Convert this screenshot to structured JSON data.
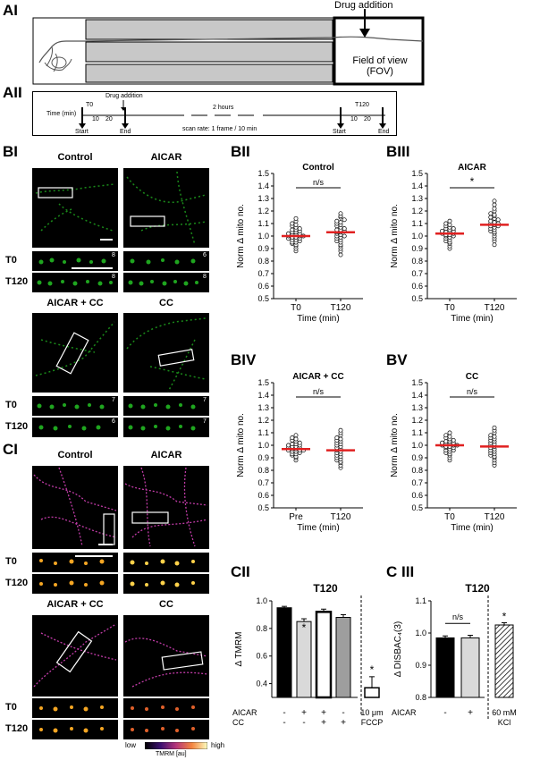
{
  "panelA": {
    "labelAI": "AI",
    "labelAII": "AII",
    "drugAddition": "Drug addition",
    "fovLine1": "Field of view",
    "fovLine2": "(FOV)",
    "timeline": {
      "timeLabel": "Time (min)",
      "t0": "T0",
      "t120": "T120",
      "drug": "Drug addition",
      "twoHours": "2 hours",
      "scanRate": "scan rate: 1 frame / 10 min",
      "start": "Start",
      "end": "End",
      "ticks": [
        "10",
        "20"
      ]
    }
  },
  "panelB": {
    "label": "BI",
    "images": [
      {
        "title": "Control",
        "n0": "8",
        "n120": "8"
      },
      {
        "title": "AICAR",
        "n0": "6",
        "n120": "8"
      },
      {
        "title": "AICAR + CC",
        "n0": "7",
        "n120": "6"
      },
      {
        "title": "CC",
        "n0": "7",
        "n120": "7"
      }
    ],
    "rowT0": "T0",
    "rowT120": "T120"
  },
  "panelC": {
    "label": "CI",
    "images": [
      {
        "title": "Control"
      },
      {
        "title": "AICAR"
      },
      {
        "title": "AICAR + CC"
      },
      {
        "title": "CC"
      }
    ],
    "rowT0": "T0",
    "rowT120": "T120",
    "colorbar": {
      "low": "low",
      "high": "high",
      "unit": "TMRM [au]"
    }
  },
  "chart_data": [
    {
      "id": "BII",
      "type": "scatter",
      "title": "Control",
      "panel": "BII",
      "ylabel": "Norm Δ mito no.",
      "xlabel": "Time (min)",
      "categories": [
        "T0",
        "T120"
      ],
      "ylim": [
        0.5,
        1.5
      ],
      "yticks": [
        "0.5",
        "0.6",
        "0.7",
        "0.8",
        "0.9",
        "1.0",
        "1.1",
        "1.2",
        "1.3",
        "1.4",
        "1.5"
      ],
      "significance": "n/s",
      "means": [
        1.0,
        1.03
      ],
      "series": [
        {
          "values": [
            0.88,
            0.9,
            0.92,
            0.93,
            0.94,
            0.95,
            0.95,
            0.96,
            0.97,
            0.97,
            0.98,
            0.98,
            0.99,
            0.99,
            1.0,
            1.0,
            1.0,
            1.01,
            1.01,
            1.02,
            1.02,
            1.03,
            1.03,
            1.04,
            1.05,
            1.05,
            1.06,
            1.07,
            1.08,
            1.09,
            1.1,
            1.12,
            1.14
          ]
        },
        {
          "values": [
            0.85,
            0.88,
            0.9,
            0.92,
            0.93,
            0.95,
            0.96,
            0.97,
            0.98,
            0.99,
            1.0,
            1.0,
            1.01,
            1.02,
            1.03,
            1.03,
            1.04,
            1.05,
            1.05,
            1.06,
            1.07,
            1.08,
            1.09,
            1.1,
            1.11,
            1.12,
            1.13,
            1.15,
            1.16,
            1.18
          ]
        }
      ]
    },
    {
      "id": "BIII",
      "type": "scatter",
      "title": "AICAR",
      "panel": "BIII",
      "ylabel": "Norm Δ mito no.",
      "xlabel": "Time (min)",
      "categories": [
        "T0",
        "T120"
      ],
      "ylim": [
        0.5,
        1.5
      ],
      "yticks": [
        "0.5",
        "0.6",
        "0.7",
        "0.8",
        "0.9",
        "1.0",
        "1.1",
        "1.2",
        "1.3",
        "1.4",
        "1.5"
      ],
      "significance": "*",
      "means": [
        1.02,
        1.09
      ],
      "series": [
        {
          "values": [
            0.9,
            0.92,
            0.94,
            0.95,
            0.96,
            0.97,
            0.98,
            0.99,
            1.0,
            1.0,
            1.01,
            1.01,
            1.02,
            1.02,
            1.03,
            1.03,
            1.04,
            1.04,
            1.05,
            1.06,
            1.06,
            1.07,
            1.08,
            1.09,
            1.1,
            1.12
          ]
        },
        {
          "values": [
            0.93,
            0.96,
            0.98,
            1.0,
            1.02,
            1.03,
            1.04,
            1.05,
            1.06,
            1.07,
            1.08,
            1.08,
            1.09,
            1.1,
            1.1,
            1.11,
            1.12,
            1.13,
            1.14,
            1.15,
            1.16,
            1.17,
            1.18,
            1.2,
            1.22,
            1.25,
            1.28
          ]
        }
      ]
    },
    {
      "id": "BIV",
      "type": "scatter",
      "title": "AICAR + CC",
      "panel": "BIV",
      "ylabel": "Norm Δ mito no.",
      "xlabel": "Time (min)",
      "categories": [
        "Pre",
        "T120"
      ],
      "ylim": [
        0.5,
        1.5
      ],
      "yticks": [
        "0.5",
        "0.6",
        "0.7",
        "0.8",
        "0.9",
        "1.0",
        "1.1",
        "1.2",
        "1.3",
        "1.4",
        "1.5"
      ],
      "significance": "n/s",
      "means": [
        0.97,
        0.96
      ],
      "series": [
        {
          "values": [
            0.88,
            0.9,
            0.91,
            0.92,
            0.93,
            0.93,
            0.94,
            0.95,
            0.95,
            0.96,
            0.96,
            0.96,
            0.97,
            0.97,
            0.98,
            0.98,
            0.99,
            0.99,
            1.0,
            1.0,
            1.01,
            1.01,
            1.02,
            1.03,
            1.04,
            1.05,
            1.06,
            1.08
          ]
        },
        {
          "values": [
            0.82,
            0.84,
            0.86,
            0.87,
            0.88,
            0.89,
            0.9,
            0.91,
            0.92,
            0.93,
            0.94,
            0.95,
            0.96,
            0.97,
            0.98,
            0.99,
            1.0,
            1.01,
            1.02,
            1.03,
            1.04,
            1.05,
            1.06,
            1.08,
            1.1,
            1.12
          ]
        }
      ]
    },
    {
      "id": "BV",
      "type": "scatter",
      "title": "CC",
      "panel": "BV",
      "ylabel": "Norm Δ mito no.",
      "xlabel": "Time (min)",
      "categories": [
        "T0",
        "T120"
      ],
      "ylim": [
        0.5,
        1.5
      ],
      "yticks": [
        "0.5",
        "0.6",
        "0.7",
        "0.8",
        "0.9",
        "1.0",
        "1.1",
        "1.2",
        "1.3",
        "1.4",
        "1.5"
      ],
      "significance": "n/s",
      "means": [
        1.0,
        0.99
      ],
      "series": [
        {
          "values": [
            0.88,
            0.9,
            0.92,
            0.93,
            0.94,
            0.95,
            0.96,
            0.96,
            0.97,
            0.98,
            0.98,
            0.99,
            0.99,
            1.0,
            1.0,
            1.0,
            1.01,
            1.01,
            1.02,
            1.02,
            1.03,
            1.03,
            1.04,
            1.05,
            1.06,
            1.07,
            1.08,
            1.1
          ]
        },
        {
          "values": [
            0.84,
            0.86,
            0.88,
            0.9,
            0.91,
            0.92,
            0.93,
            0.94,
            0.95,
            0.96,
            0.97,
            0.98,
            0.99,
            1.0,
            1.01,
            1.02,
            1.03,
            1.04,
            1.05,
            1.06,
            1.07,
            1.08,
            1.1,
            1.12,
            1.14
          ]
        }
      ]
    },
    {
      "id": "CII",
      "type": "bar",
      "title": "T120",
      "panel": "CII",
      "ylabel": "Δ TMRM",
      "ylim": [
        0.3,
        1.0
      ],
      "yticks": [
        "0.4",
        "0.6",
        "0.8",
        "1.0"
      ],
      "categories": [
        "Control",
        "AICAR",
        "AICAR + CC",
        "CC",
        "10 μm FCCP"
      ],
      "values": [
        0.95,
        0.85,
        0.92,
        0.88,
        0.37
      ],
      "errors": [
        0.01,
        0.02,
        0.02,
        0.02,
        0.08
      ],
      "significance": [
        "",
        "*",
        "",
        "",
        "*"
      ],
      "rowLabels": [
        "AICAR",
        "CC"
      ],
      "aicarSigns": [
        "-",
        "+",
        "+",
        "-"
      ],
      "ccSigns": [
        "-",
        "-",
        "+",
        "+"
      ],
      "fccpLine1": "10 μm",
      "fccpLine2": "FCCP",
      "colors": [
        "#000000",
        "#d9d9d9",
        "#000000",
        "#9e9e9e",
        "#000000"
      ]
    },
    {
      "id": "CIII",
      "type": "bar",
      "title": "T120",
      "panel": "C III",
      "ylabel": "Δ DISBAC₄(3)",
      "ylim": [
        0.8,
        1.1
      ],
      "yticks": [
        "0.8",
        "0.9",
        "1.0",
        "1.1"
      ],
      "categories": [
        "-",
        "+",
        "60 mM KCl"
      ],
      "values": [
        0.985,
        0.985,
        1.025
      ],
      "errors": [
        0.006,
        0.008,
        0.007
      ],
      "significance": "n/s",
      "kclStar": "*",
      "rowLabel": "AICAR",
      "kclLine1": "60 mM",
      "kclLine2": "KCl"
    }
  ]
}
